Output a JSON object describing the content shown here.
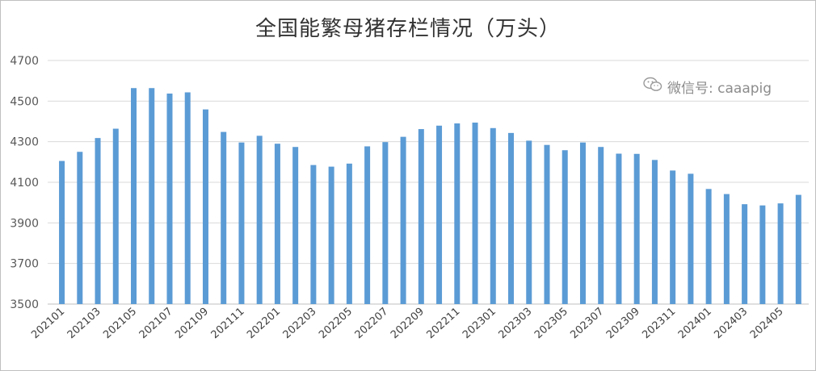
{
  "chart_data": {
    "type": "bar",
    "title": "全国能繁母猪存栏情况（万头）",
    "xlabel": "",
    "ylabel": "",
    "ylim": [
      3500,
      4700
    ],
    "yticks": [
      3500,
      3700,
      3900,
      4100,
      4300,
      4500,
      4700
    ],
    "grid": true,
    "bar_color": "#5b9bd5",
    "categories": [
      "202101",
      "202102",
      "202103",
      "202104",
      "202105",
      "202106",
      "202107",
      "202108",
      "202109",
      "202110",
      "202111",
      "202112",
      "202201",
      "202202",
      "202203",
      "202204",
      "202205",
      "202206",
      "202207",
      "202208",
      "202209",
      "202210",
      "202211",
      "202212",
      "202301",
      "202302",
      "202303",
      "202304",
      "202305",
      "202306",
      "202307",
      "202308",
      "202309",
      "202310",
      "202311",
      "202312",
      "202401",
      "202402",
      "202403",
      "202404",
      "202405",
      "202406"
    ],
    "tick_labels": [
      "202101",
      "202103",
      "202105",
      "202107",
      "202109",
      "202111",
      "202201",
      "202203",
      "202205",
      "202207",
      "202209",
      "202211",
      "202301",
      "202303",
      "202305",
      "202307",
      "202309",
      "202311",
      "202401",
      "202403",
      "202405"
    ],
    "values": [
      4205,
      4250,
      4318,
      4364,
      4564,
      4564,
      4537,
      4543,
      4459,
      4348,
      4296,
      4329,
      4290,
      4274,
      4185,
      4177,
      4192,
      4277,
      4298,
      4324,
      4362,
      4379,
      4390,
      4394,
      4367,
      4343,
      4305,
      4284,
      4258,
      4296,
      4274,
      4241,
      4240,
      4210,
      4158,
      4142,
      4067,
      4042,
      3992,
      3986,
      3996,
      4038
    ]
  },
  "watermark": {
    "icon": "wechat-icon",
    "text": "微信号: caaapig",
    "color": "#8c8c8c"
  }
}
